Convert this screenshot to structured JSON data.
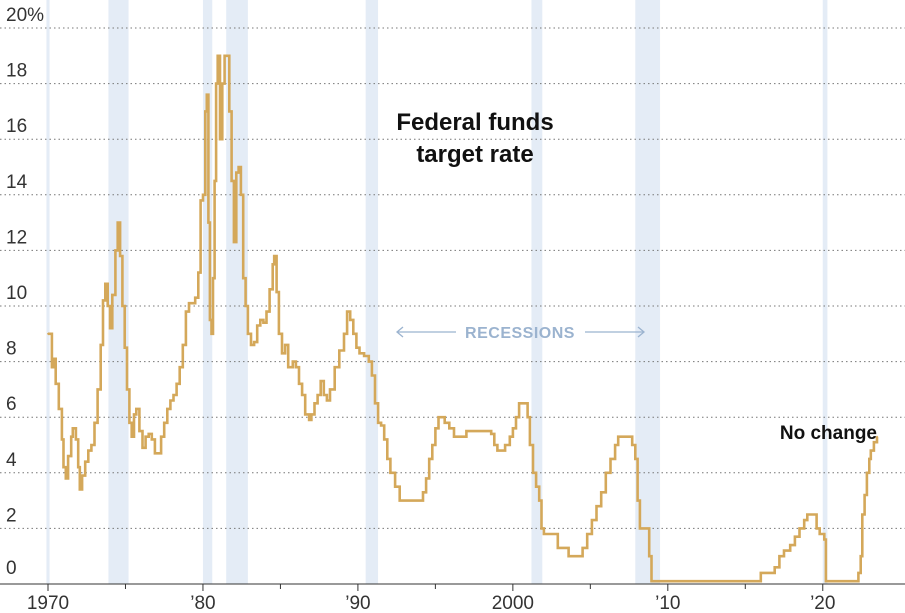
{
  "colors": {
    "line": "#d4a85a",
    "recession": "#e4ecf6",
    "recession_label": "#9bb3cf",
    "grid": "#777777",
    "text": "#333333"
  },
  "annotations": {
    "title_line1": "Federal funds",
    "title_line2": "target rate",
    "recessions_label": "RECESSIONS",
    "no_change_label": "No change"
  },
  "chart_data": {
    "type": "line",
    "title": "",
    "xlabel": "",
    "ylabel": "",
    "xlim": [
      1970,
      2023.5
    ],
    "ylim": [
      0,
      20
    ],
    "grid": "horizontal dotted",
    "x_ticks": [
      {
        "value": 1970,
        "label": "1970"
      },
      {
        "value": 1980,
        "label": "’80"
      },
      {
        "value": 1990,
        "label": "’90"
      },
      {
        "value": 2000,
        "label": "2000"
      },
      {
        "value": 2010,
        "label": "’10"
      },
      {
        "value": 2020,
        "label": "’20"
      }
    ],
    "y_ticks": [
      {
        "value": 0,
        "label": "0"
      },
      {
        "value": 2,
        "label": "2"
      },
      {
        "value": 4,
        "label": "4"
      },
      {
        "value": 6,
        "label": "6"
      },
      {
        "value": 8,
        "label": "8"
      },
      {
        "value": 10,
        "label": "10"
      },
      {
        "value": 12,
        "label": "12"
      },
      {
        "value": 14,
        "label": "14"
      },
      {
        "value": 16,
        "label": "16"
      },
      {
        "value": 18,
        "label": "18"
      },
      {
        "value": 20,
        "label": "20%"
      }
    ],
    "recessions": [
      [
        1969.9,
        1970.1
      ],
      [
        1973.9,
        1975.2
      ],
      [
        1980.0,
        1980.6
      ],
      [
        1981.5,
        1982.9
      ],
      [
        1990.5,
        1991.3
      ],
      [
        2001.2,
        2001.9
      ],
      [
        2007.9,
        2009.5
      ],
      [
        2020.0,
        2020.3
      ]
    ],
    "series": [
      {
        "values": [
          [
            1970.0,
            9.0
          ],
          [
            1970.2,
            9.0
          ],
          [
            1970.25,
            7.8
          ],
          [
            1970.35,
            8.1
          ],
          [
            1970.5,
            7.2
          ],
          [
            1970.7,
            6.3
          ],
          [
            1970.9,
            5.2
          ],
          [
            1971.0,
            4.2
          ],
          [
            1971.15,
            3.8
          ],
          [
            1971.3,
            4.6
          ],
          [
            1971.5,
            5.3
          ],
          [
            1971.6,
            5.6
          ],
          [
            1971.8,
            5.2
          ],
          [
            1971.95,
            4.2
          ],
          [
            1972.05,
            3.4
          ],
          [
            1972.2,
            3.9
          ],
          [
            1972.4,
            4.4
          ],
          [
            1972.6,
            4.8
          ],
          [
            1972.8,
            5.0
          ],
          [
            1973.0,
            5.8
          ],
          [
            1973.2,
            7.0
          ],
          [
            1973.4,
            8.6
          ],
          [
            1973.55,
            10.2
          ],
          [
            1973.7,
            10.8
          ],
          [
            1973.85,
            10.0
          ],
          [
            1974.0,
            9.2
          ],
          [
            1974.15,
            10.4
          ],
          [
            1974.35,
            12.0
          ],
          [
            1974.5,
            13.0
          ],
          [
            1974.65,
            11.8
          ],
          [
            1974.8,
            10.0
          ],
          [
            1974.95,
            8.5
          ],
          [
            1975.1,
            7.0
          ],
          [
            1975.25,
            5.8
          ],
          [
            1975.4,
            5.3
          ],
          [
            1975.55,
            6.1
          ],
          [
            1975.7,
            6.3
          ],
          [
            1975.9,
            5.5
          ],
          [
            1976.1,
            4.9
          ],
          [
            1976.3,
            5.3
          ],
          [
            1976.5,
            5.4
          ],
          [
            1976.7,
            5.2
          ],
          [
            1976.9,
            4.7
          ],
          [
            1977.1,
            4.7
          ],
          [
            1977.3,
            5.3
          ],
          [
            1977.5,
            5.8
          ],
          [
            1977.7,
            6.3
          ],
          [
            1977.9,
            6.6
          ],
          [
            1978.1,
            6.8
          ],
          [
            1978.3,
            7.2
          ],
          [
            1978.5,
            7.8
          ],
          [
            1978.7,
            8.6
          ],
          [
            1978.9,
            9.8
          ],
          [
            1979.1,
            10.1
          ],
          [
            1979.3,
            10.1
          ],
          [
            1979.5,
            10.3
          ],
          [
            1979.7,
            11.2
          ],
          [
            1979.85,
            13.8
          ],
          [
            1980.0,
            14.0
          ],
          [
            1980.15,
            17.0
          ],
          [
            1980.25,
            17.6
          ],
          [
            1980.35,
            13.0
          ],
          [
            1980.45,
            9.5
          ],
          [
            1980.55,
            9.0
          ],
          [
            1980.65,
            11.0
          ],
          [
            1980.75,
            14.5
          ],
          [
            1980.85,
            18.0
          ],
          [
            1980.95,
            19.0
          ],
          [
            1981.1,
            16.0
          ],
          [
            1981.25,
            18.0
          ],
          [
            1981.4,
            19.0
          ],
          [
            1981.55,
            19.0
          ],
          [
            1981.7,
            17.0
          ],
          [
            1981.85,
            14.5
          ],
          [
            1982.0,
            12.3
          ],
          [
            1982.15,
            14.8
          ],
          [
            1982.3,
            15.0
          ],
          [
            1982.45,
            14.0
          ],
          [
            1982.6,
            11.0
          ],
          [
            1982.75,
            10.0
          ],
          [
            1982.9,
            9.0
          ],
          [
            1983.1,
            8.6
          ],
          [
            1983.3,
            8.7
          ],
          [
            1983.5,
            9.3
          ],
          [
            1983.7,
            9.5
          ],
          [
            1983.9,
            9.4
          ],
          [
            1984.1,
            9.8
          ],
          [
            1984.3,
            10.6
          ],
          [
            1984.5,
            11.5
          ],
          [
            1984.6,
            11.8
          ],
          [
            1984.75,
            10.5
          ],
          [
            1984.9,
            9.0
          ],
          [
            1985.1,
            8.3
          ],
          [
            1985.3,
            8.6
          ],
          [
            1985.5,
            7.8
          ],
          [
            1985.8,
            8.0
          ],
          [
            1986.0,
            7.8
          ],
          [
            1986.2,
            7.2
          ],
          [
            1986.4,
            6.8
          ],
          [
            1986.6,
            6.1
          ],
          [
            1986.85,
            5.9
          ],
          [
            1987.0,
            6.1
          ],
          [
            1987.2,
            6.5
          ],
          [
            1987.4,
            6.8
          ],
          [
            1987.6,
            7.3
          ],
          [
            1987.8,
            6.8
          ],
          [
            1988.0,
            6.6
          ],
          [
            1988.2,
            7.0
          ],
          [
            1988.5,
            7.8
          ],
          [
            1988.8,
            8.4
          ],
          [
            1989.1,
            9.0
          ],
          [
            1989.3,
            9.8
          ],
          [
            1989.5,
            9.5
          ],
          [
            1989.7,
            9.0
          ],
          [
            1989.9,
            8.5
          ],
          [
            1990.1,
            8.3
          ],
          [
            1990.4,
            8.2
          ],
          [
            1990.7,
            8.0
          ],
          [
            1990.9,
            7.5
          ],
          [
            1991.1,
            6.5
          ],
          [
            1991.3,
            5.8
          ],
          [
            1991.5,
            5.7
          ],
          [
            1991.7,
            5.2
          ],
          [
            1991.9,
            4.5
          ],
          [
            1992.1,
            4.0
          ],
          [
            1992.4,
            3.5
          ],
          [
            1992.7,
            3.0
          ],
          [
            1993.0,
            3.0
          ],
          [
            1993.5,
            3.0
          ],
          [
            1994.0,
            3.0
          ],
          [
            1994.2,
            3.3
          ],
          [
            1994.4,
            3.8
          ],
          [
            1994.6,
            4.5
          ],
          [
            1994.8,
            5.0
          ],
          [
            1995.0,
            5.6
          ],
          [
            1995.2,
            6.0
          ],
          [
            1995.6,
            5.8
          ],
          [
            1995.9,
            5.6
          ],
          [
            1996.2,
            5.3
          ],
          [
            1996.5,
            5.3
          ],
          [
            1997.0,
            5.5
          ],
          [
            1997.5,
            5.5
          ],
          [
            1998.0,
            5.5
          ],
          [
            1998.6,
            5.4
          ],
          [
            1998.8,
            5.0
          ],
          [
            1999.0,
            4.8
          ],
          [
            1999.3,
            4.8
          ],
          [
            1999.5,
            5.0
          ],
          [
            1999.8,
            5.3
          ],
          [
            2000.0,
            5.6
          ],
          [
            2000.2,
            6.0
          ],
          [
            2000.4,
            6.5
          ],
          [
            2000.7,
            6.5
          ],
          [
            2000.95,
            6.0
          ],
          [
            2001.1,
            5.0
          ],
          [
            2001.3,
            4.0
          ],
          [
            2001.5,
            3.5
          ],
          [
            2001.7,
            3.0
          ],
          [
            2001.85,
            2.0
          ],
          [
            2002.0,
            1.8
          ],
          [
            2002.5,
            1.8
          ],
          [
            2002.9,
            1.3
          ],
          [
            2003.3,
            1.3
          ],
          [
            2003.6,
            1.0
          ],
          [
            2004.0,
            1.0
          ],
          [
            2004.5,
            1.3
          ],
          [
            2004.8,
            1.8
          ],
          [
            2005.1,
            2.3
          ],
          [
            2005.4,
            2.8
          ],
          [
            2005.7,
            3.3
          ],
          [
            2006.0,
            4.0
          ],
          [
            2006.3,
            4.5
          ],
          [
            2006.6,
            5.0
          ],
          [
            2006.8,
            5.3
          ],
          [
            2007.0,
            5.3
          ],
          [
            2007.5,
            5.3
          ],
          [
            2007.7,
            5.0
          ],
          [
            2007.9,
            4.5
          ],
          [
            2008.05,
            3.0
          ],
          [
            2008.2,
            2.0
          ],
          [
            2008.6,
            2.0
          ],
          [
            2008.8,
            1.0
          ],
          [
            2008.95,
            0.1
          ],
          [
            2009.5,
            0.1
          ],
          [
            2010.0,
            0.1
          ],
          [
            2012.0,
            0.1
          ],
          [
            2014.0,
            0.1
          ],
          [
            2015.9,
            0.1
          ],
          [
            2016.0,
            0.4
          ],
          [
            2016.9,
            0.6
          ],
          [
            2017.2,
            1.0
          ],
          [
            2017.5,
            1.2
          ],
          [
            2017.9,
            1.4
          ],
          [
            2018.2,
            1.7
          ],
          [
            2018.5,
            2.0
          ],
          [
            2018.8,
            2.3
          ],
          [
            2019.0,
            2.5
          ],
          [
            2019.4,
            2.5
          ],
          [
            2019.6,
            2.0
          ],
          [
            2019.8,
            1.8
          ],
          [
            2020.1,
            1.6
          ],
          [
            2020.2,
            0.1
          ],
          [
            2021.0,
            0.1
          ],
          [
            2022.0,
            0.1
          ],
          [
            2022.3,
            0.4
          ],
          [
            2022.45,
            1.0
          ],
          [
            2022.55,
            2.5
          ],
          [
            2022.7,
            3.2
          ],
          [
            2022.85,
            4.0
          ],
          [
            2023.0,
            4.5
          ],
          [
            2023.1,
            4.8
          ],
          [
            2023.3,
            5.1
          ],
          [
            2023.5,
            5.3
          ]
        ]
      }
    ]
  }
}
